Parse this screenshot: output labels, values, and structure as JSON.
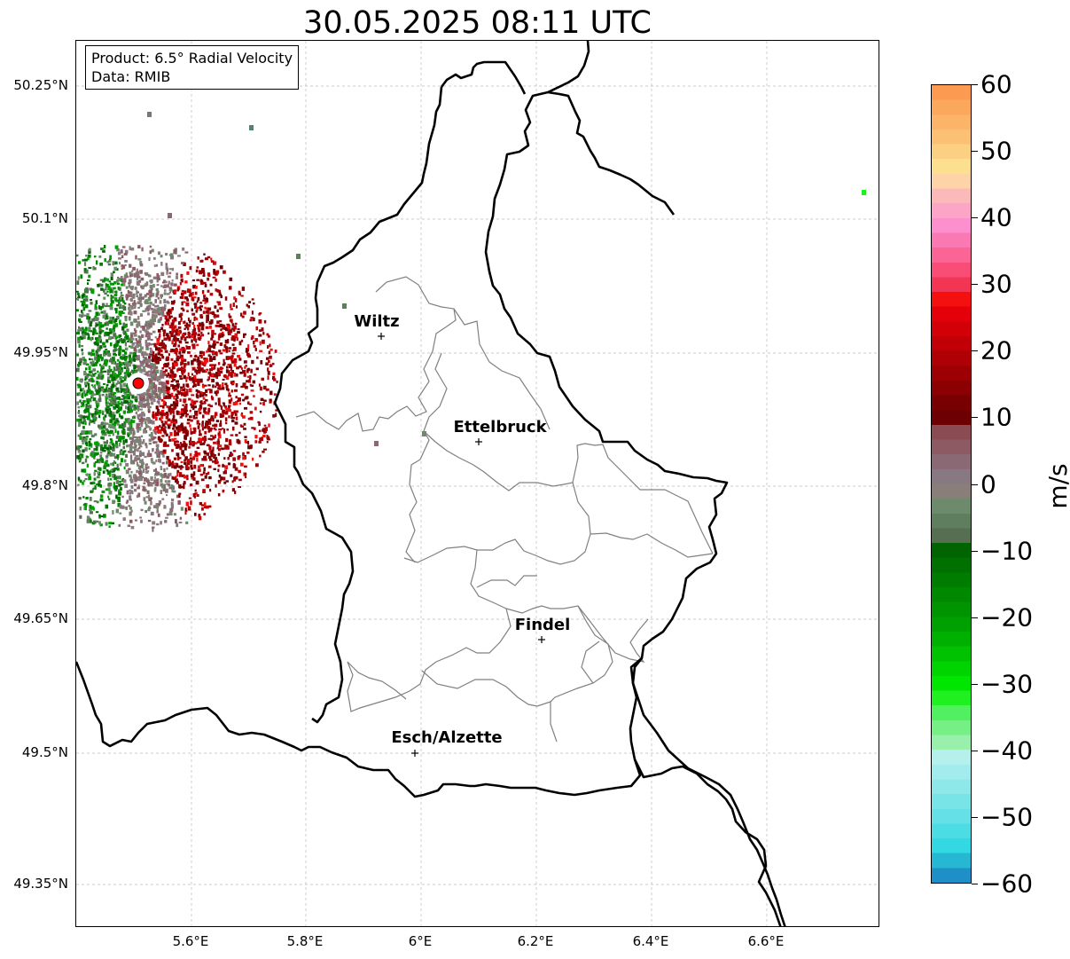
{
  "title": "30.05.2025 08:11 UTC",
  "info_box": {
    "line1": "Product: 6.5° Radial Velocity",
    "line2": "Data: RMIB"
  },
  "y_ticks": [
    "50.25°N",
    "50.1°N",
    "49.95°N",
    "49.8°N",
    "49.65°N",
    "49.5°N",
    "49.35°N"
  ],
  "x_ticks": [
    "5.6°E",
    "5.8°E",
    "6°E",
    "6.2°E",
    "6.4°E",
    "6.6°E"
  ],
  "towns": [
    "Wiltz",
    "Ettelbruck",
    "Findel",
    "Esch/Alzette"
  ],
  "colorbar": {
    "unit": "m/s",
    "tick_labels": [
      "60",
      "50",
      "40",
      "30",
      "20",
      "10",
      "0",
      "−10",
      "−20",
      "−30",
      "−40",
      "−50",
      "−60"
    ],
    "range": [
      -60,
      60
    ],
    "colors_top_to_bottom": [
      "#fb9a50",
      "#fba75c",
      "#fbb468",
      "#fbc074",
      "#fcd082",
      "#fde08f",
      "#fdd3a7",
      "#fcb9b9",
      "#fca5c6",
      "#fc8fce",
      "#fb79b3",
      "#fa6595",
      "#f94c76",
      "#f33554",
      "#f51010",
      "#e40008",
      "#d20007",
      "#c00006",
      "#ae0005",
      "#9c0004",
      "#8a0003",
      "#780002",
      "#6d0002",
      "#8b4b52",
      "#8d5a64",
      "#8a6874",
      "#887882",
      "#8a7e7a",
      "#6e8a6c",
      "#5e7e5e",
      "#566e52",
      "#006400",
      "#007000",
      "#007c00",
      "#008800",
      "#009400",
      "#00a000",
      "#00b000",
      "#00c200",
      "#00d400",
      "#00e600",
      "#20f020",
      "#50f060",
      "#74f084",
      "#98f0ac",
      "#b6f0ec",
      "#a2eced",
      "#8ee8ea",
      "#78e4e8",
      "#64e0e6",
      "#4cdce4",
      "#32d8e2",
      "#26b8d2",
      "#1f8fc8"
    ]
  },
  "radar_site": {
    "color": "#ff0000"
  }
}
